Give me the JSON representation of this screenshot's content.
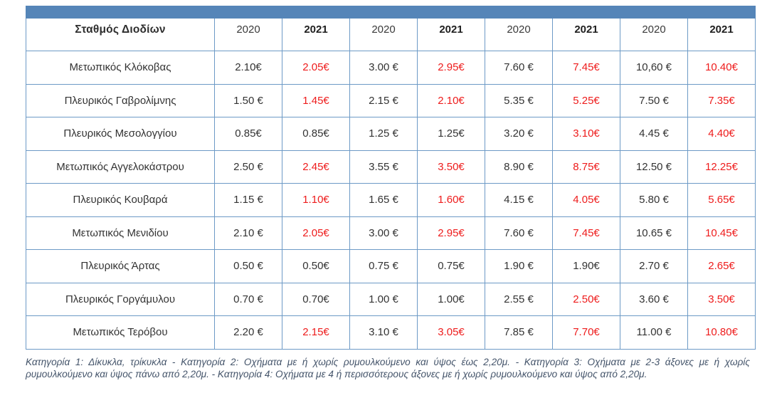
{
  "colors": {
    "top_bar_blue": "#5585b8",
    "grid_border_blue": "#6d9ac6",
    "increase_red": "#ee1c1c",
    "body_text": "#2e2e2e",
    "footnote_text": "#44546a"
  },
  "table": {
    "station_header": "Σταθμός Διοδίων",
    "year_headers": [
      {
        "label": "2020",
        "bold": false
      },
      {
        "label": "2021",
        "bold": true
      },
      {
        "label": "2020",
        "bold": false
      },
      {
        "label": "2021",
        "bold": true
      },
      {
        "label": "2020",
        "bold": false
      },
      {
        "label": "2021",
        "bold": true
      },
      {
        "label": "2020",
        "bold": false
      },
      {
        "label": "2021",
        "bold": true
      }
    ],
    "rows": [
      {
        "station": "Μετωπικός Κλόκοβας",
        "cells": [
          {
            "text": "2.10€",
            "red": false
          },
          {
            "text": "2.05€",
            "red": true
          },
          {
            "text": "3.00 €",
            "red": false
          },
          {
            "text": "2.95€",
            "red": true
          },
          {
            "text": "7.60 €",
            "red": false
          },
          {
            "text": "7.45€",
            "red": true
          },
          {
            "text": "10,60 €",
            "red": false
          },
          {
            "text": "10.40€",
            "red": true
          }
        ]
      },
      {
        "station": "Πλευρικός Γαβρολίμνης",
        "cells": [
          {
            "text": "1.50 €",
            "red": false
          },
          {
            "text": "1.45€",
            "red": true
          },
          {
            "text": "2.15 €",
            "red": false
          },
          {
            "text": "2.10€",
            "red": true
          },
          {
            "text": "5.35 €",
            "red": false
          },
          {
            "text": "5.25€",
            "red": true
          },
          {
            "text": "7.50 €",
            "red": false
          },
          {
            "text": "7.35€",
            "red": true
          }
        ]
      },
      {
        "station": "Πλευρικός Μεσολογγίου",
        "cells": [
          {
            "text": "0.85€",
            "red": false
          },
          {
            "text": "0.85€",
            "red": false
          },
          {
            "text": "1.25 €",
            "red": false
          },
          {
            "text": "1.25€",
            "red": false
          },
          {
            "text": "3.20 €",
            "red": false
          },
          {
            "text": "3.10€",
            "red": true
          },
          {
            "text": "4.45 €",
            "red": false
          },
          {
            "text": "4.40€",
            "red": true
          }
        ]
      },
      {
        "station": "Μετωπικός Αγγελοκάστρου",
        "cells": [
          {
            "text": "2.50 €",
            "red": false
          },
          {
            "text": "2.45€",
            "red": true
          },
          {
            "text": "3.55 €",
            "red": false
          },
          {
            "text": "3.50€",
            "red": true
          },
          {
            "text": "8.90 €",
            "red": false
          },
          {
            "text": "8.75€",
            "red": true
          },
          {
            "text": "12.50 €",
            "red": false
          },
          {
            "text": "12.25€",
            "red": true
          }
        ]
      },
      {
        "station": "Πλευρικός Κουβαρά",
        "cells": [
          {
            "text": "1.15 €",
            "red": false
          },
          {
            "text": "1.10€",
            "red": true
          },
          {
            "text": "1.65 €",
            "red": false
          },
          {
            "text": "1.60€",
            "red": true
          },
          {
            "text": "4.15 €",
            "red": false
          },
          {
            "text": "4.05€",
            "red": true
          },
          {
            "text": "5.80 €",
            "red": false
          },
          {
            "text": "5.65€",
            "red": true
          }
        ]
      },
      {
        "station": "Μετωπικός Μενιδίου",
        "cells": [
          {
            "text": "2.10 €",
            "red": false
          },
          {
            "text": "2.05€",
            "red": true
          },
          {
            "text": "3.00 €",
            "red": false
          },
          {
            "text": "2.95€",
            "red": true
          },
          {
            "text": "7.60 €",
            "red": false
          },
          {
            "text": "7.45€",
            "red": true
          },
          {
            "text": "10.65 €",
            "red": false
          },
          {
            "text": "10.45€",
            "red": true
          }
        ]
      },
      {
        "station": "Πλευρικός Άρτας",
        "cells": [
          {
            "text": "0.50 €",
            "red": false
          },
          {
            "text": "0.50€",
            "red": false
          },
          {
            "text": "0.75 €",
            "red": false
          },
          {
            "text": "0.75€",
            "red": false
          },
          {
            "text": "1.90 €",
            "red": false
          },
          {
            "text": "1.90€",
            "red": false
          },
          {
            "text": "2.70 €",
            "red": false
          },
          {
            "text": "2.65€",
            "red": true
          }
        ]
      },
      {
        "station": "Πλευρικός Γοργάμυλου",
        "cells": [
          {
            "text": "0.70 €",
            "red": false
          },
          {
            "text": "0.70€",
            "red": false
          },
          {
            "text": "1.00 €",
            "red": false
          },
          {
            "text": "1.00€",
            "red": false
          },
          {
            "text": "2.55 €",
            "red": false
          },
          {
            "text": "2.50€",
            "red": true
          },
          {
            "text": "3.60 €",
            "red": false
          },
          {
            "text": "3.50€",
            "red": true
          }
        ]
      },
      {
        "station": "Μετωπικός Τερόβου",
        "cells": [
          {
            "text": "2.20 €",
            "red": false
          },
          {
            "text": "2.15€",
            "red": true
          },
          {
            "text": "3.10 €",
            "red": false
          },
          {
            "text": "3.05€",
            "red": true
          },
          {
            "text": "7.85 €",
            "red": false
          },
          {
            "text": "7.70€",
            "red": true
          },
          {
            "text": "11.00 €",
            "red": false
          },
          {
            "text": "10.80€",
            "red": true
          }
        ]
      }
    ]
  },
  "footnote": "Κατηγορία 1: Δίκυκλα, τρίκυκλα - Κατηγορία 2: Οχήματα με ή χωρίς ρυμουλκούμενο και ύψος έως 2,20μ. - Κατηγορία 3: Οχήματα με 2-3 άξονες με ή χωρίς ρυμουλκούμενο και ύψος πάνω από 2,20μ. - Κατηγορία 4: Οχήματα με 4 ή περισσότερους άξονες με ή χωρίς ρυμουλκούμενο και ύψος από 2,20μ."
}
